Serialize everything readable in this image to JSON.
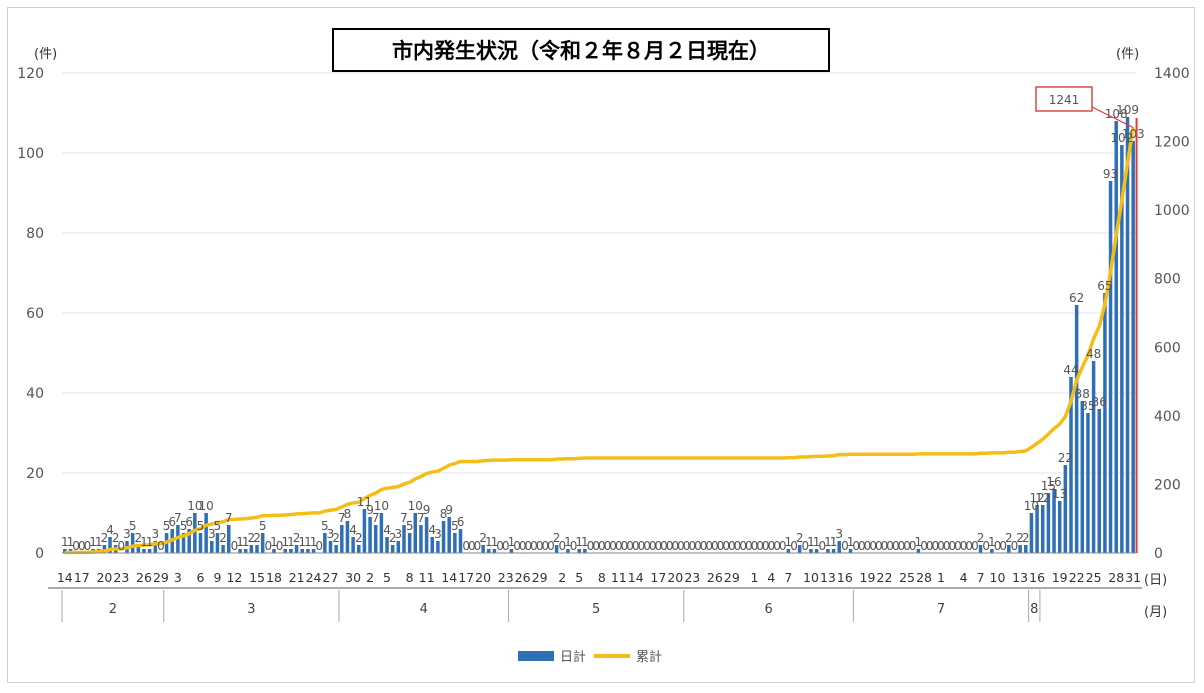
{
  "chart_data": {
    "type": "bar+line",
    "title": "市内発生状況（令和２年８月２日現在）",
    "y_left_unit": "(件)",
    "y_right_unit": "(件)",
    "x_day_unit": "(日)",
    "x_month_unit": "(月)",
    "y_left_ticks": [
      "0",
      "20",
      "40",
      "60",
      "80",
      "100",
      "120"
    ],
    "y_right_ticks": [
      "0",
      "200",
      "400",
      "600",
      "800",
      "1000",
      "1200",
      "1400"
    ],
    "ylim_left": [
      0,
      120
    ],
    "ylim_right": [
      0,
      1400
    ],
    "months": [
      {
        "label": "2",
        "count": 18
      },
      {
        "label": "3",
        "count": 31
      },
      {
        "label": "4",
        "count": 30
      },
      {
        "label": "5",
        "count": 31
      },
      {
        "label": "6",
        "count": 30
      },
      {
        "label": "7",
        "count": 31
      },
      {
        "label": "8",
        "count": 2
      }
    ],
    "date_labels": [
      "14",
      "17",
      "20",
      "23",
      "26",
      "29",
      "3",
      "6",
      "9",
      "12",
      "15",
      "18",
      "21",
      "24",
      "27",
      "30",
      "2",
      "5",
      "8",
      "11",
      "14",
      "17",
      "20",
      "23",
      "26",
      "29",
      "2",
      "5",
      "8",
      "11",
      "14",
      "17",
      "20",
      "23",
      "26",
      "29",
      "1",
      "4",
      "7",
      "10",
      "13",
      "16",
      "19",
      "22",
      "25",
      "28",
      "1",
      "4",
      "7",
      "10",
      "13",
      "16",
      "19",
      "22",
      "25",
      "28",
      "31"
    ],
    "series": [
      {
        "name": "日計",
        "color": "#2f6fb6",
        "values": [
          1,
          1,
          0,
          0,
          0,
          1,
          1,
          2,
          4,
          2,
          0,
          3,
          5,
          2,
          1,
          1,
          3,
          0,
          5,
          6,
          7,
          5,
          6,
          10,
          5,
          10,
          3,
          5,
          2,
          7,
          0,
          1,
          1,
          2,
          2,
          5,
          0,
          1,
          0,
          1,
          1,
          2,
          1,
          1,
          1,
          0,
          5,
          3,
          2,
          7,
          8,
          4,
          2,
          11,
          9,
          7,
          10,
          4,
          2,
          3,
          7,
          5,
          10,
          7,
          9,
          4,
          3,
          8,
          9,
          5,
          6,
          0,
          0,
          0,
          2,
          1,
          1,
          0,
          0,
          1,
          0,
          0,
          0,
          0,
          0,
          0,
          0,
          2,
          0,
          1,
          0,
          1,
          1,
          0,
          0,
          0,
          0,
          0,
          0,
          0,
          0,
          0,
          0,
          0,
          0,
          0,
          0,
          0,
          0,
          0,
          0,
          0,
          0,
          0,
          0,
          0,
          0,
          0,
          0,
          0,
          0,
          0,
          0,
          0,
          0,
          0,
          0,
          0,
          1,
          0,
          2,
          0,
          1,
          1,
          0,
          1,
          1,
          3,
          0,
          1,
          0,
          0,
          0,
          0,
          0,
          0,
          0,
          0,
          0,
          0,
          0,
          1,
          0,
          0,
          0,
          0,
          0,
          0,
          0,
          0,
          0,
          0,
          2,
          0,
          1,
          0,
          0,
          2,
          0,
          2,
          2,
          10,
          12,
          12,
          15,
          16,
          13,
          22,
          44,
          62,
          38,
          35,
          48,
          36,
          65,
          93,
          108,
          102,
          109,
          103
        ]
      },
      {
        "name": "累計",
        "color": "#f4be18"
      }
    ],
    "annotation": {
      "text": "1241",
      "value": 1241
    }
  },
  "legend": {
    "bar_label": "日計",
    "line_label": "累計"
  }
}
